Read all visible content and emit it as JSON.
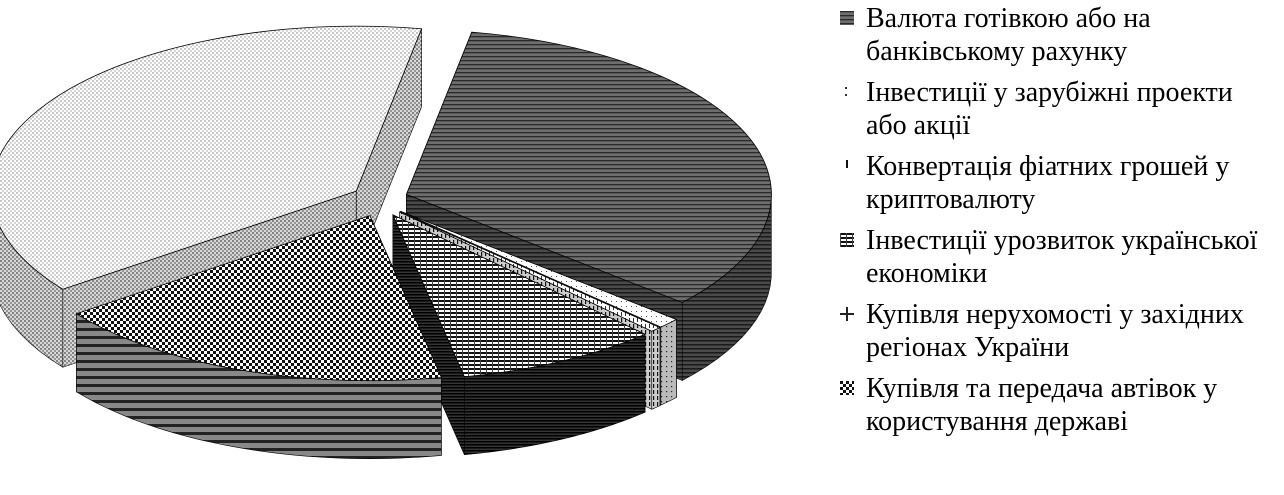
{
  "chart_data": {
    "type": "pie",
    "title": "",
    "style": "3d-exploded",
    "series": [
      {
        "label": "Валюта готівкою або на банківському рахунку",
        "value": 33.5,
        "pattern": "hlines-dark"
      },
      {
        "label": "Інвестиції у зарубіжні проекти або акції",
        "value": 1.0,
        "pattern": "dots-sparse"
      },
      {
        "label": "Конвертація фіатних грошей у криптовалюту",
        "value": 0.5,
        "pattern": "vdash"
      },
      {
        "label": "Інвестиції урозвиток української економіки",
        "value": 9.0,
        "pattern": "hlines-heavy"
      },
      {
        "label": "Купівля нерухомості у західних регіонах України",
        "value": 18.0,
        "pattern": "checker"
      },
      {
        "label": "Купівля та передача автівок у користування державі",
        "value": 38.0,
        "pattern": "dots-dense"
      }
    ],
    "legend_position": "right"
  },
  "legend": {
    "items": [
      {
        "label": "Валюта готівкою або на банківському рахунку"
      },
      {
        "label": "Інвестиції у зарубіжні проекти або акції"
      },
      {
        "label": "Конвертація фіатних грошей у криптовалюту"
      },
      {
        "label": "Інвестиції урозвиток української економіки"
      },
      {
        "label": "Купівля нерухомості у західних регіонах України"
      },
      {
        "label": "Купівля та передача автівок у користування державі"
      }
    ]
  }
}
